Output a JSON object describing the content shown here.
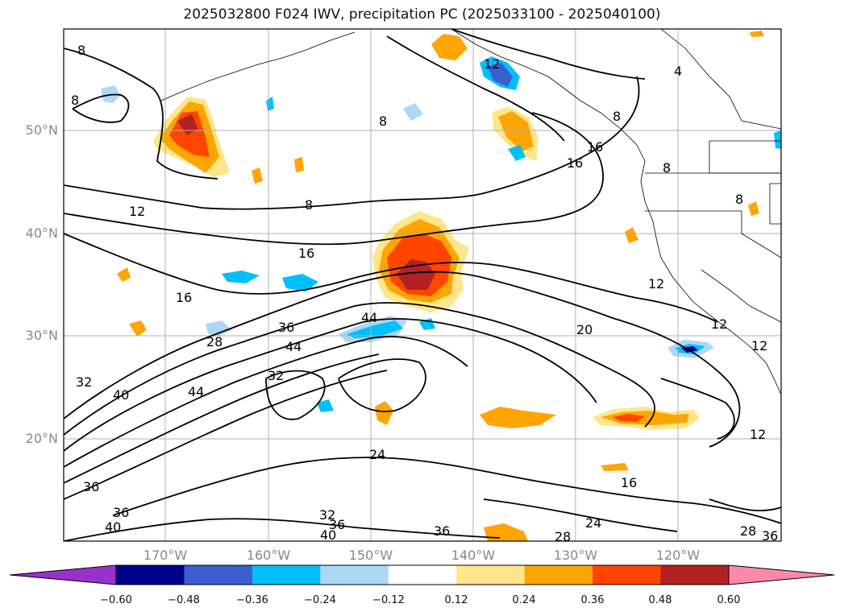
{
  "title": "2025032800 F024 IWV, precipitation PC (2025033100 - 2025040100)",
  "lat_labels": [
    "50°N",
    "40°N",
    "30°N",
    "20°N"
  ],
  "lon_labels": [
    "170°W",
    "160°W",
    "150°W",
    "140°W",
    "130°W",
    "120°W"
  ],
  "colorbar": {
    "ticks": [
      "−0.60",
      "−0.48",
      "−0.36",
      "−0.24",
      "−0.12",
      "0.12",
      "0.24",
      "0.36",
      "0.48",
      "0.60"
    ],
    "colors": [
      "#9932cc",
      "#00008b",
      "#3a5fcd",
      "#00bfff",
      "#add8f5",
      "#ffffff",
      "#ffe68a",
      "#ffa500",
      "#ff4500",
      "#b22222",
      "#ff88aa"
    ]
  },
  "contour_labels": [
    "8",
    "8",
    "4",
    "12",
    "8",
    "16",
    "16",
    "8",
    "8",
    "8",
    "8",
    "12",
    "16",
    "16",
    "12",
    "44",
    "36",
    "28",
    "44",
    "20",
    "32",
    "32",
    "40",
    "44",
    "12",
    "12",
    "24",
    "16",
    "12",
    "36",
    "36",
    "32",
    "36",
    "40",
    "40",
    "36",
    "24",
    "28",
    "28",
    "36"
  ],
  "colors": {
    "axis_label": "#888888",
    "contour": "#000000"
  }
}
